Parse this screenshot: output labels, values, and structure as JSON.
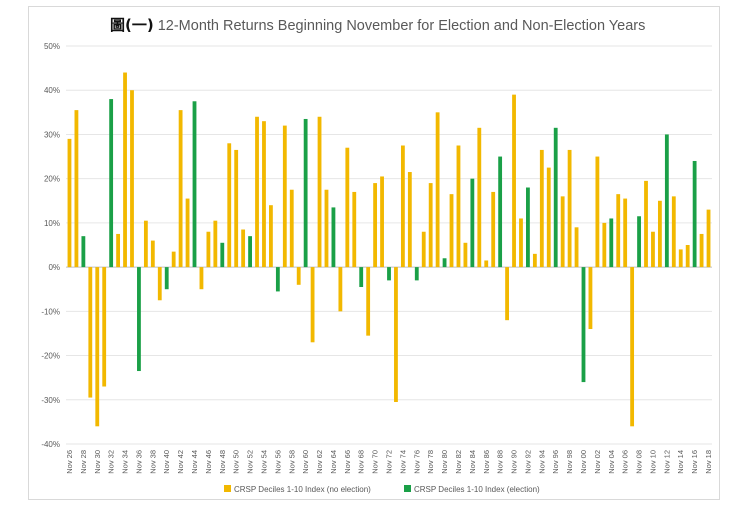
{
  "title_prefix": "圖(一)",
  "chart_data": {
    "type": "bar",
    "title": "12-Month Returns Beginning November for Election and Non-Election Years",
    "xlabel": "",
    "ylabel": "",
    "ylim": [
      -40,
      50
    ],
    "yticks": [
      "50%",
      "40%",
      "30%",
      "20%",
      "10%",
      "0%",
      "-10%",
      "-20%",
      "-30%",
      "-40%"
    ],
    "ytick_values": [
      50,
      40,
      30,
      20,
      10,
      0,
      -10,
      -20,
      -30,
      -40
    ],
    "grid": true,
    "legend_position": "bottom",
    "series": [
      {
        "name": "CRSP Deciles 1-10 Index (no election)",
        "color": "#f2b800"
      },
      {
        "name": "CRSP Deciles 1-10 Index (election)",
        "color": "#1aa047"
      }
    ],
    "categories": [
      "Nov 26",
      "Nov 27",
      "Nov 28",
      "Nov 29",
      "Nov 30",
      "Nov 31",
      "Nov 32",
      "Nov 33",
      "Nov 34",
      "Nov 35",
      "Nov 36",
      "Nov 37",
      "Nov 38",
      "Nov 39",
      "Nov 40",
      "Nov 41",
      "Nov 42",
      "Nov 43",
      "Nov 44",
      "Nov 45",
      "Nov 46",
      "Nov 47",
      "Nov 48",
      "Nov 49",
      "Nov 50",
      "Nov 51",
      "Nov 52",
      "Nov 53",
      "Nov 54",
      "Nov 55",
      "Nov 56",
      "Nov 57",
      "Nov 58",
      "Nov 59",
      "Nov 60",
      "Nov 61",
      "Nov 62",
      "Nov 63",
      "Nov 64",
      "Nov 65",
      "Nov 66",
      "Nov 67",
      "Nov 68",
      "Nov 69",
      "Nov 70",
      "Nov 71",
      "Nov 72",
      "Nov 73",
      "Nov 74",
      "Nov 75",
      "Nov 76",
      "Nov 77",
      "Nov 78",
      "Nov 79",
      "Nov 80",
      "Nov 81",
      "Nov 82",
      "Nov 83",
      "Nov 84",
      "Nov 85",
      "Nov 86",
      "Nov 87",
      "Nov 88",
      "Nov 89",
      "Nov 90",
      "Nov 91",
      "Nov 92",
      "Nov 93",
      "Nov 94",
      "Nov 95",
      "Nov 96",
      "Nov 97",
      "Nov 98",
      "Nov 99",
      "Nov 00",
      "Nov 01",
      "Nov 02",
      "Nov 03",
      "Nov 04",
      "Nov 05",
      "Nov 06",
      "Nov 07",
      "Nov 08",
      "Nov 09",
      "Nov 10",
      "Nov 11",
      "Nov 12",
      "Nov 13",
      "Nov 14",
      "Nov 15",
      "Nov 16",
      "Nov 17",
      "Nov 18"
    ],
    "x_tick_labels": [
      "Nov 26",
      "Nov 28",
      "Nov 30",
      "Nov 32",
      "Nov 34",
      "Nov 36",
      "Nov 38",
      "Nov 40",
      "Nov 42",
      "Nov 44",
      "Nov 46",
      "Nov 48",
      "Nov 50",
      "Nov 52",
      "Nov 54",
      "Nov 56",
      "Nov 58",
      "Nov 60",
      "Nov 62",
      "Nov 64",
      "Nov 66",
      "Nov 68",
      "Nov 70",
      "Nov 72",
      "Nov 74",
      "Nov 76",
      "Nov 78",
      "Nov 80",
      "Nov 82",
      "Nov 84",
      "Nov 86",
      "Nov 88",
      "Nov 90",
      "Nov 92",
      "Nov 94",
      "Nov 96",
      "Nov 98",
      "Nov 00",
      "Nov 02",
      "Nov 04",
      "Nov 06",
      "Nov 08",
      "Nov 10",
      "Nov 12",
      "Nov 14",
      "Nov 16",
      "Nov 18"
    ],
    "values": [
      29,
      35.5,
      7,
      -29.5,
      -36,
      -27,
      38,
      7.5,
      44,
      40,
      -23.5,
      10.5,
      6,
      -7.5,
      -5,
      3.5,
      35.5,
      15.5,
      37.5,
      -5,
      8,
      10.5,
      5.5,
      28,
      26.5,
      8.5,
      7,
      34,
      33,
      14,
      -5.5,
      32,
      17.5,
      -4,
      33.5,
      -17,
      34,
      17.5,
      13.5,
      -10,
      27,
      17,
      -4.5,
      -15.5,
      19,
      20.5,
      -3,
      -30.5,
      27.5,
      21.5,
      -3,
      8,
      19,
      35,
      2,
      16.5,
      27.5,
      5.5,
      20,
      31.5,
      1.5,
      17,
      25,
      -12,
      39,
      11,
      18,
      3,
      26.5,
      22.5,
      31.5,
      16,
      26.5,
      9,
      -26,
      -14,
      25,
      10,
      11,
      16.5,
      15.5,
      -36,
      11.5,
      19.5,
      8,
      15,
      30,
      16,
      4,
      5,
      24,
      7.5,
      13
    ],
    "series_index": [
      0,
      0,
      1,
      0,
      0,
      0,
      1,
      0,
      0,
      0,
      1,
      0,
      0,
      0,
      1,
      0,
      0,
      0,
      1,
      0,
      0,
      0,
      1,
      0,
      0,
      0,
      1,
      0,
      0,
      0,
      1,
      0,
      0,
      0,
      1,
      0,
      0,
      0,
      1,
      0,
      0,
      0,
      1,
      0,
      0,
      0,
      1,
      0,
      0,
      0,
      1,
      0,
      0,
      0,
      1,
      0,
      0,
      0,
      1,
      0,
      0,
      0,
      1,
      0,
      0,
      0,
      1,
      0,
      0,
      0,
      1,
      0,
      0,
      0,
      1,
      0,
      0,
      0,
      1,
      0,
      0,
      0,
      1,
      0,
      0,
      0,
      1,
      0,
      0,
      0,
      1,
      0,
      0
    ]
  }
}
